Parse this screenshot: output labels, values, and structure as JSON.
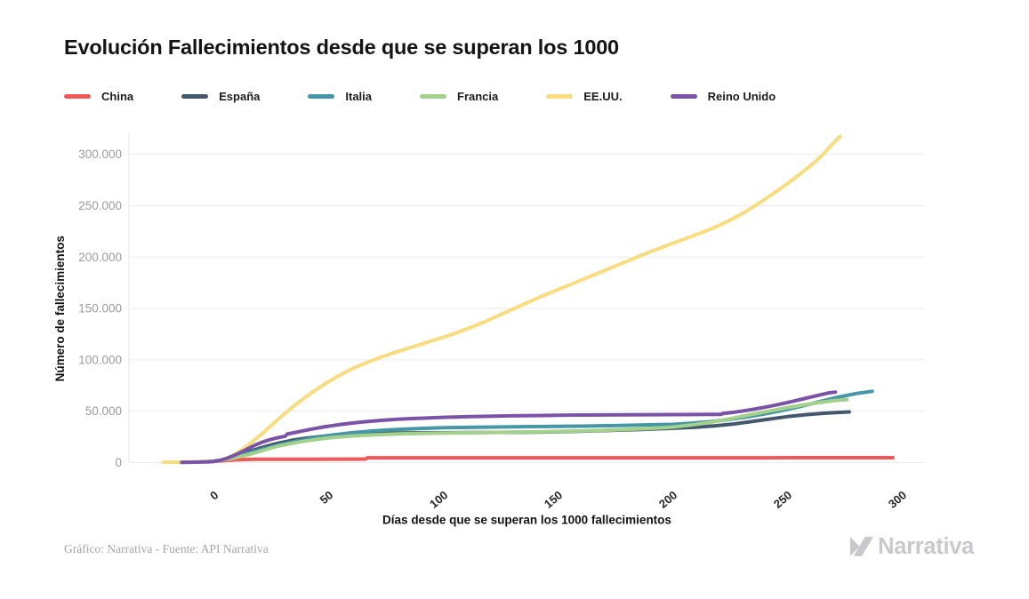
{
  "title": "Evolución Fallecimientos desde que se superan los 1000",
  "footer": {
    "credit": "Gráfico: Narrativa - Fuente: API Narrativa",
    "logo_text": "Narrativa"
  },
  "chart_data": {
    "type": "line",
    "title": "Evolución Fallecimientos desde que se superan los 1000",
    "xlabel": "Días desde que se superan los 1000 fallecimientos",
    "ylabel": "Número de fallecimientos",
    "legend_position": "top",
    "grid": true,
    "xlim": [
      -37,
      310
    ],
    "ylim": [
      0,
      320500
    ],
    "xticks": [
      {
        "v": 0,
        "label": "0"
      },
      {
        "v": 50,
        "label": "50"
      },
      {
        "v": 100,
        "label": "100"
      },
      {
        "v": 150,
        "label": "150"
      },
      {
        "v": 200,
        "label": "200"
      },
      {
        "v": 250,
        "label": "250"
      },
      {
        "v": 300,
        "label": "300"
      }
    ],
    "yticks": [
      {
        "v": 0,
        "label": "0"
      },
      {
        "v": 50000,
        "label": "50.000"
      },
      {
        "v": 100000,
        "label": "100.000"
      },
      {
        "v": 150000,
        "label": "150.000"
      },
      {
        "v": 200000,
        "label": "200.000"
      },
      {
        "v": 250000,
        "label": "250.000"
      },
      {
        "v": 300000,
        "label": "300.000"
      }
    ],
    "series": [
      {
        "name": "China",
        "color": "#f25858",
        "points": [
          [
            0,
            1100
          ],
          [
            4,
            1800
          ],
          [
            8,
            2500
          ],
          [
            12,
            2900
          ],
          [
            16,
            3100
          ],
          [
            20,
            3220
          ],
          [
            30,
            3300
          ],
          [
            45,
            3330
          ],
          [
            66,
            3340
          ],
          [
            67,
            4630
          ],
          [
            90,
            4640
          ],
          [
            120,
            4640
          ],
          [
            150,
            4650
          ],
          [
            180,
            4660
          ],
          [
            210,
            4680
          ],
          [
            240,
            4700
          ],
          [
            270,
            4730
          ],
          [
            296,
            4750
          ]
        ]
      },
      {
        "name": "España",
        "color": "#43586c",
        "points": [
          [
            -2,
            950
          ],
          [
            0,
            1350
          ],
          [
            4,
            2800
          ],
          [
            8,
            5200
          ],
          [
            12,
            8200
          ],
          [
            16,
            11200
          ],
          [
            20,
            14000
          ],
          [
            24,
            16600
          ],
          [
            28,
            18900
          ],
          [
            34,
            21700
          ],
          [
            40,
            23700
          ],
          [
            46,
            25300
          ],
          [
            52,
            26500
          ],
          [
            60,
            27600
          ],
          [
            70,
            28300
          ],
          [
            80,
            28700
          ],
          [
            95,
            29000
          ],
          [
            110,
            29200
          ],
          [
            125,
            29400
          ],
          [
            140,
            29700
          ],
          [
            155,
            30300
          ],
          [
            170,
            31100
          ],
          [
            185,
            32100
          ],
          [
            200,
            33400
          ],
          [
            210,
            34400
          ],
          [
            218,
            35600
          ],
          [
            226,
            37400
          ],
          [
            234,
            39800
          ],
          [
            242,
            42300
          ],
          [
            250,
            44700
          ],
          [
            258,
            46600
          ],
          [
            266,
            48000
          ],
          [
            272,
            48800
          ],
          [
            277,
            49300
          ]
        ]
      },
      {
        "name": "Italia",
        "color": "#4596a7",
        "points": [
          [
            -6,
            900
          ],
          [
            -3,
            1000
          ],
          [
            0,
            1300
          ],
          [
            4,
            2600
          ],
          [
            8,
            4500
          ],
          [
            12,
            7000
          ],
          [
            16,
            9900
          ],
          [
            20,
            12400
          ],
          [
            24,
            14700
          ],
          [
            28,
            17000
          ],
          [
            34,
            20000
          ],
          [
            40,
            22700
          ],
          [
            46,
            25000
          ],
          [
            52,
            26900
          ],
          [
            60,
            29000
          ],
          [
            70,
            30900
          ],
          [
            80,
            32300
          ],
          [
            90,
            33200
          ],
          [
            100,
            33900
          ],
          [
            115,
            34400
          ],
          [
            130,
            34800
          ],
          [
            145,
            35100
          ],
          [
            160,
            35500
          ],
          [
            175,
            36000
          ],
          [
            190,
            36800
          ],
          [
            200,
            37200
          ],
          [
            208,
            38300
          ],
          [
            216,
            39800
          ],
          [
            224,
            41800
          ],
          [
            232,
            44300
          ],
          [
            240,
            47300
          ],
          [
            248,
            50800
          ],
          [
            256,
            54800
          ],
          [
            264,
            59300
          ],
          [
            272,
            63600
          ],
          [
            280,
            67200
          ],
          [
            287,
            69400
          ]
        ]
      },
      {
        "name": "Francia",
        "color": "#a3d18c",
        "points": [
          [
            -3,
            950
          ],
          [
            0,
            1250
          ],
          [
            4,
            2400
          ],
          [
            8,
            4100
          ],
          [
            12,
            6100
          ],
          [
            16,
            8300
          ],
          [
            20,
            10900
          ],
          [
            24,
            13600
          ],
          [
            28,
            16000
          ],
          [
            34,
            18700
          ],
          [
            40,
            21000
          ],
          [
            46,
            22900
          ],
          [
            52,
            24400
          ],
          [
            60,
            25900
          ],
          [
            70,
            27100
          ],
          [
            80,
            27900
          ],
          [
            90,
            28400
          ],
          [
            100,
            28800
          ],
          [
            115,
            29200
          ],
          [
            130,
            29600
          ],
          [
            145,
            30100
          ],
          [
            160,
            30800
          ],
          [
            175,
            31800
          ],
          [
            190,
            33200
          ],
          [
            200,
            34500
          ],
          [
            208,
            36500
          ],
          [
            216,
            39000
          ],
          [
            224,
            42200
          ],
          [
            232,
            45800
          ],
          [
            240,
            49300
          ],
          [
            248,
            52700
          ],
          [
            256,
            55800
          ],
          [
            264,
            58500
          ],
          [
            270,
            60200
          ],
          [
            276,
            61300
          ]
        ]
      },
      {
        "name": "EE.UU.",
        "color": "#f8dc7f",
        "points": [
          [
            -22,
            200
          ],
          [
            -15,
            400
          ],
          [
            -8,
            650
          ],
          [
            0,
            1200
          ],
          [
            3,
            2300
          ],
          [
            6,
            4500
          ],
          [
            9,
            7800
          ],
          [
            12,
            12000
          ],
          [
            15,
            17000
          ],
          [
            18,
            22500
          ],
          [
            21,
            28000
          ],
          [
            24,
            34000
          ],
          [
            27,
            40000
          ],
          [
            30,
            46000
          ],
          [
            33,
            51500
          ],
          [
            36,
            57000
          ],
          [
            39,
            62000
          ],
          [
            42,
            67000
          ],
          [
            45,
            71500
          ],
          [
            48,
            76000
          ],
          [
            51,
            80000
          ],
          [
            54,
            84000
          ],
          [
            57,
            87500
          ],
          [
            60,
            91000
          ],
          [
            64,
            95000
          ],
          [
            68,
            98500
          ],
          [
            72,
            102000
          ],
          [
            76,
            105000
          ],
          [
            80,
            108000
          ],
          [
            85,
            111500
          ],
          [
            90,
            115000
          ],
          [
            95,
            118500
          ],
          [
            100,
            122000
          ],
          [
            106,
            126500
          ],
          [
            112,
            131500
          ],
          [
            118,
            137000
          ],
          [
            124,
            143000
          ],
          [
            130,
            149000
          ],
          [
            136,
            155000
          ],
          [
            142,
            161000
          ],
          [
            148,
            166500
          ],
          [
            154,
            172000
          ],
          [
            160,
            177500
          ],
          [
            166,
            183000
          ],
          [
            172,
            188500
          ],
          [
            178,
            194000
          ],
          [
            184,
            199500
          ],
          [
            190,
            205000
          ],
          [
            196,
            210000
          ],
          [
            202,
            215000
          ],
          [
            208,
            220000
          ],
          [
            214,
            225000
          ],
          [
            220,
            230500
          ],
          [
            226,
            237000
          ],
          [
            232,
            244500
          ],
          [
            238,
            253000
          ],
          [
            244,
            262000
          ],
          [
            250,
            271500
          ],
          [
            256,
            281500
          ],
          [
            262,
            292500
          ],
          [
            266,
            301000
          ],
          [
            269,
            308500
          ],
          [
            273,
            317500
          ]
        ]
      },
      {
        "name": "Reino Unido",
        "color": "#7a52a8",
        "points": [
          [
            -14,
            250
          ],
          [
            -10,
            350
          ],
          [
            -6,
            500
          ],
          [
            -3,
            700
          ],
          [
            0,
            1100
          ],
          [
            3,
            2300
          ],
          [
            6,
            4400
          ],
          [
            9,
            7100
          ],
          [
            12,
            10300
          ],
          [
            15,
            13700
          ],
          [
            18,
            17000
          ],
          [
            21,
            19800
          ],
          [
            24,
            22000
          ],
          [
            27,
            23800
          ],
          [
            30,
            25200
          ],
          [
            31,
            25500
          ],
          [
            32,
            27800
          ],
          [
            34,
            28600
          ],
          [
            37,
            30000
          ],
          [
            40,
            31400
          ],
          [
            44,
            33100
          ],
          [
            48,
            34700
          ],
          [
            52,
            36100
          ],
          [
            56,
            37300
          ],
          [
            60,
            38400
          ],
          [
            65,
            39600
          ],
          [
            70,
            40600
          ],
          [
            75,
            41400
          ],
          [
            80,
            42100
          ],
          [
            85,
            42700
          ],
          [
            90,
            43200
          ],
          [
            95,
            43600
          ],
          [
            100,
            44000
          ],
          [
            110,
            44600
          ],
          [
            120,
            45100
          ],
          [
            130,
            45500
          ],
          [
            140,
            45800
          ],
          [
            150,
            46100
          ],
          [
            160,
            46300
          ],
          [
            170,
            46400
          ],
          [
            180,
            46500
          ],
          [
            190,
            46600
          ],
          [
            200,
            46700
          ],
          [
            210,
            46800
          ],
          [
            216,
            46900
          ],
          [
            221,
            47000
          ],
          [
            222,
            47800
          ],
          [
            226,
            48800
          ],
          [
            230,
            50000
          ],
          [
            235,
            51800
          ],
          [
            240,
            53800
          ],
          [
            245,
            56000
          ],
          [
            250,
            58400
          ],
          [
            255,
            61000
          ],
          [
            260,
            63700
          ],
          [
            265,
            66300
          ],
          [
            268,
            67800
          ],
          [
            271,
            68600
          ]
        ]
      }
    ]
  }
}
